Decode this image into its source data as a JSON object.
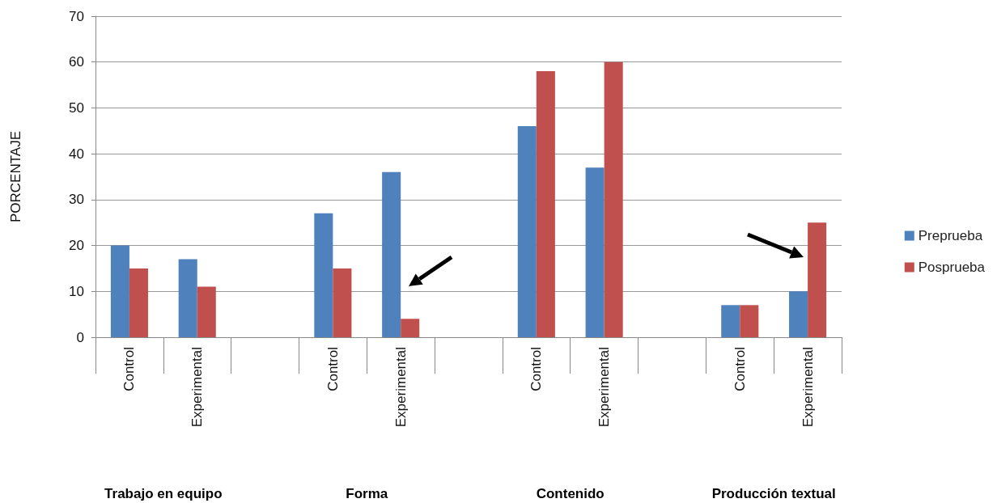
{
  "chart_data": {
    "type": "bar",
    "ylabel": "PORCENTAJE",
    "categories": [
      "Control",
      "Experimental",
      null,
      "Control",
      "Experimental",
      null,
      "Control",
      "Experimental",
      null,
      "Control",
      "Experimental"
    ],
    "series": [
      {
        "name": "Preprueba",
        "color": "#4f81bd",
        "values": [
          20,
          17,
          null,
          27,
          36,
          null,
          46,
          37,
          null,
          7,
          10
        ]
      },
      {
        "name": "Posprueba",
        "color": "#c0504d",
        "values": [
          15,
          11,
          null,
          15,
          4,
          null,
          58,
          60,
          null,
          7,
          25
        ]
      }
    ],
    "ylim": [
      0,
      70
    ],
    "yticks": [
      0,
      10,
      20,
      30,
      40,
      50,
      60,
      70
    ],
    "grid": "y",
    "legend": "right",
    "annotations": [
      "Trabajo en equipo",
      "Forma",
      "Contenido",
      "Producción textual"
    ]
  }
}
